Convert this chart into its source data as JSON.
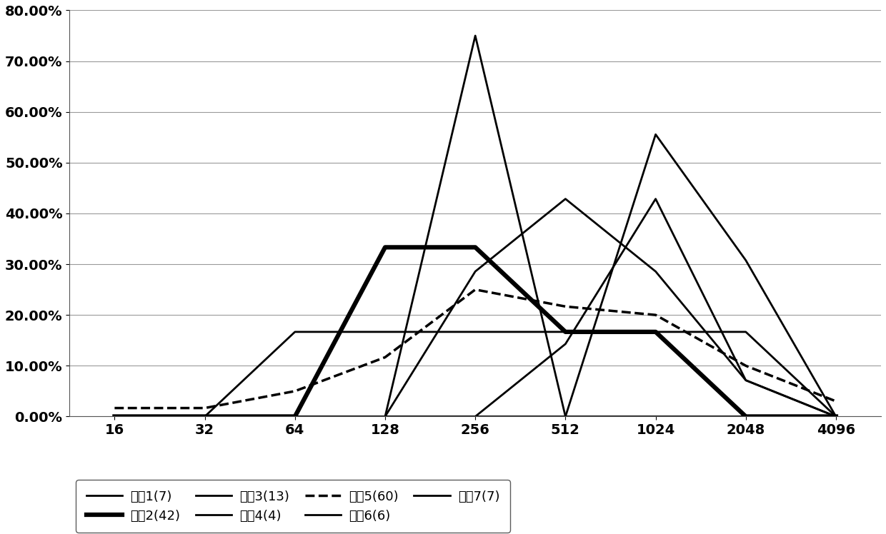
{
  "x_labels": [
    "16",
    "32",
    "64",
    "128",
    "256",
    "512",
    "1024",
    "2048",
    "4096"
  ],
  "x_indices": [
    0,
    1,
    2,
    3,
    4,
    5,
    6,
    7,
    8
  ],
  "series": [
    {
      "label": "厂商1(7)",
      "values": [
        0.0,
        0.0,
        0.0,
        0.0,
        0.75,
        0.0,
        0.0,
        0.0,
        0.0
      ],
      "linestyle": "-",
      "linewidth": 2.0,
      "color": "#000000"
    },
    {
      "label": "厂商2(42)",
      "values": [
        0.0,
        0.0,
        0.0,
        0.3333,
        0.3333,
        0.1667,
        0.1667,
        0.0,
        0.0
      ],
      "linestyle": "-",
      "linewidth": 4.5,
      "color": "#000000"
    },
    {
      "label": "厂商3(13)",
      "values": [
        0.0,
        0.0,
        0.0,
        0.0,
        0.2857,
        0.4286,
        0.2857,
        0.0714,
        0.0
      ],
      "linestyle": "-",
      "linewidth": 2.0,
      "color": "#000000"
    },
    {
      "label": "厂商4(4)",
      "values": [
        0.0,
        0.0,
        0.0,
        0.0,
        0.0,
        0.0,
        0.5556,
        0.3077,
        0.0
      ],
      "linestyle": "-",
      "linewidth": 2.0,
      "color": "#000000"
    },
    {
      "label": "厂商5(60)",
      "values": [
        0.0167,
        0.0167,
        0.05,
        0.1167,
        0.25,
        0.2167,
        0.2,
        0.1,
        0.03
      ],
      "linestyle": "--",
      "linewidth": 2.5,
      "color": "#000000"
    },
    {
      "label": "厂商6(6)",
      "values": [
        0.0,
        0.0,
        0.1667,
        0.1667,
        0.1667,
        0.1667,
        0.1667,
        0.1667,
        0.0
      ],
      "linestyle": "-",
      "linewidth": 2.0,
      "color": "#000000"
    },
    {
      "label": "厂商7(7)",
      "values": [
        0.0,
        0.0,
        0.0,
        0.0,
        0.0,
        0.1429,
        0.4286,
        0.0714,
        0.0
      ],
      "linestyle": "-",
      "linewidth": 2.0,
      "color": "#000000"
    }
  ],
  "ylim": [
    0.0,
    0.8
  ],
  "ytick_values": [
    0.0,
    0.1,
    0.2,
    0.3,
    0.4,
    0.5,
    0.6,
    0.7,
    0.8
  ],
  "ytick_labels": [
    "0.00%",
    "10.00%",
    "20.00%",
    "30.00%",
    "40.00%",
    "50.00%",
    "60.00%",
    "70.00%",
    "80.00%"
  ],
  "legend_row1": [
    "厂商1(7)",
    "厂商2(42)",
    "厂商3(13)",
    "厂商4(4)"
  ],
  "legend_row1_ls": [
    "-",
    "-",
    "-",
    "-"
  ],
  "legend_row1_lw": [
    2.0,
    4.5,
    2.0,
    2.0
  ],
  "legend_row2": [
    "厂商5(60)",
    "厂商6(6)",
    "厂商7(7)"
  ],
  "legend_row2_ls": [
    "--",
    "-",
    "-"
  ],
  "legend_row2_lw": [
    2.5,
    2.0,
    2.0
  ],
  "background_color": "#ffffff"
}
